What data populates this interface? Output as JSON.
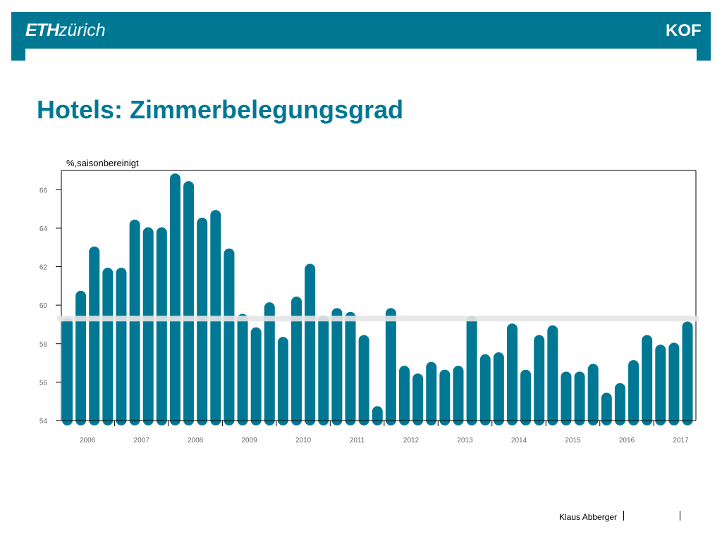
{
  "header": {
    "logo_left": "ETH zürich",
    "logo_left_bold": "ETH",
    "logo_left_light": "zürich",
    "logo_right": "KOF",
    "bar_color": "#007894"
  },
  "slide": {
    "title": "Hotels: Zimmerbelegungsgrad",
    "title_color": "#007894"
  },
  "footer": {
    "author": "Klaus Abberger"
  },
  "chart_data": {
    "type": "bar",
    "unit_label": "%,saisonbereinigt",
    "bar_color": "#007894",
    "reference_line": 59.3,
    "reference_line_color": "#e6e6e6",
    "ylim": [
      54,
      67
    ],
    "yticks": [
      54,
      56,
      58,
      60,
      62,
      64,
      66
    ],
    "year_labels": [
      "2006",
      "2007",
      "2008",
      "2009",
      "2010",
      "2011",
      "2012",
      "2013",
      "2014",
      "2015",
      "2016",
      "2017"
    ],
    "grid": false,
    "series": [
      {
        "values": [
          59.2,
          60.6,
          62.9,
          61.8,
          61.8,
          64.3,
          63.9,
          63.9,
          66.7,
          66.3,
          64.4,
          64.8,
          62.8,
          59.4,
          58.7,
          60.0,
          58.2,
          60.3,
          62.0,
          59.3,
          59.7,
          59.5,
          58.3,
          54.6,
          59.7,
          56.7,
          56.3,
          56.9,
          56.5,
          56.7,
          59.3,
          57.3,
          57.4,
          58.9,
          56.5,
          58.3,
          58.8,
          56.4,
          56.4,
          56.8,
          55.3,
          55.8,
          57.0,
          58.3,
          57.8,
          57.9,
          59.0
        ]
      }
    ]
  }
}
